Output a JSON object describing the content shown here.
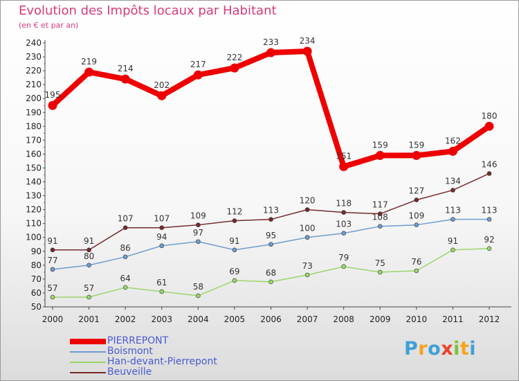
{
  "title": "Evolution des Impôts locaux par Habitant",
  "subtitle": "(en € et par an)",
  "logo": {
    "text": [
      "P",
      "r",
      "o",
      "x",
      "i",
      "t",
      "i"
    ],
    "colors": [
      "#3fa0d8",
      "#f6a21c",
      "#3fa0d8",
      "#e8432a",
      "#7cc23a",
      "#f6a21c",
      "#3fa0d8"
    ]
  },
  "chart_data": {
    "type": "line",
    "title": "Evolution des Impôts locaux par Habitant",
    "subtitle": "(en € et par an)",
    "x": [
      "2000",
      "2001",
      "2002",
      "2003",
      "2004",
      "2005",
      "2006",
      "2007",
      "2008",
      "2009",
      "2010",
      "2011",
      "2012"
    ],
    "ylim": [
      50,
      240
    ],
    "yticks": [
      50,
      60,
      70,
      80,
      90,
      100,
      110,
      120,
      130,
      140,
      150,
      160,
      170,
      180,
      190,
      200,
      210,
      220,
      230,
      240
    ],
    "grid": false,
    "legend": "bottom-left",
    "series": [
      {
        "name": "PIERREPONT",
        "color": "#ee0000",
        "values": [
          195,
          219,
          214,
          202,
          217,
          222,
          233,
          234,
          151,
          159,
          159,
          162,
          180
        ]
      },
      {
        "name": "Boismont",
        "color": "#6f9ccf",
        "values": [
          77,
          80,
          86,
          94,
          97,
          91,
          95,
          100,
          103,
          108,
          109,
          113,
          113
        ]
      },
      {
        "name": "Han-devant-Pierrepont",
        "color": "#9bd66b",
        "values": [
          57,
          57,
          64,
          61,
          58,
          69,
          68,
          73,
          79,
          75,
          76,
          91,
          92
        ]
      },
      {
        "name": "Beuveille",
        "color": "#742a2a",
        "values": [
          91,
          91,
          107,
          107,
          109,
          112,
          113,
          120,
          118,
          117,
          127,
          134,
          146
        ]
      }
    ]
  }
}
